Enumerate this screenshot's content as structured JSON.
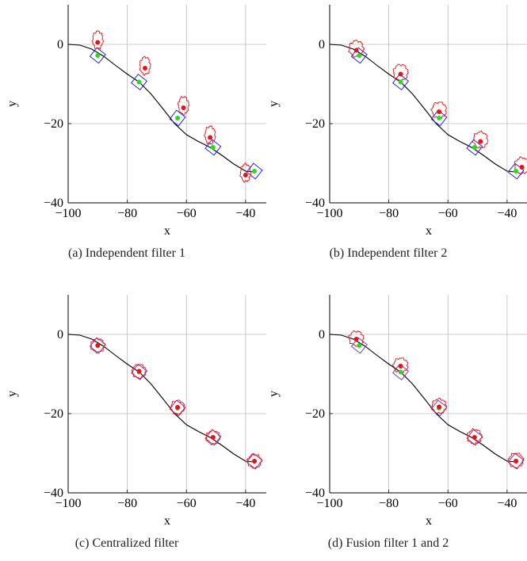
{
  "figure": {
    "panels": [
      {
        "caption": "(a) Independent filter 1"
      },
      {
        "caption": "(b) Independent filter 2"
      },
      {
        "caption": "(c) Centralized filter"
      },
      {
        "caption": "(d) Fusion filter 1 and 2"
      }
    ]
  },
  "colors": {
    "trajectory": "#000000",
    "truth_point": "#22dd22",
    "estimate_point": "#ee1111",
    "estimate_contour": "#ee1111",
    "box": "#2222ee",
    "grid": "#bbbbbb"
  },
  "chart_data": [
    {
      "type": "scatter",
      "title": "",
      "xlabel": "x",
      "ylabel": "y",
      "xlim": [
        -100,
        -33
      ],
      "ylim": [
        -40,
        10
      ],
      "xticks": [
        "−100",
        "−80",
        "−60",
        "−40"
      ],
      "yticks": [
        "0",
        "−20",
        "−40"
      ],
      "grid": true,
      "trajectory": {
        "x": [
          -100,
          -96,
          -92,
          -88,
          -84,
          -80,
          -76,
          -72,
          -68,
          -64,
          -60,
          -56,
          -52,
          -48,
          -44,
          -40,
          -37
        ],
        "y": [
          0,
          -0.2,
          -1.2,
          -3,
          -5.3,
          -7.5,
          -9.5,
          -12.5,
          -16.2,
          -20,
          -22.8,
          -24.5,
          -26,
          -28,
          -30.2,
          -32,
          -32.2
        ]
      },
      "truth": {
        "x": [
          -90,
          -76,
          -63,
          -51,
          -37
        ],
        "y": [
          -2.8,
          -9.5,
          -18.6,
          -26,
          -32
        ]
      },
      "estimates": {
        "x": [
          -90,
          -74,
          -61,
          -52,
          -40
        ],
        "y": [
          0.5,
          -6,
          -16,
          -23.5,
          -33
        ]
      }
    },
    {
      "type": "scatter",
      "title": "",
      "xlabel": "x",
      "ylabel": "y",
      "xlim": [
        -100,
        -33
      ],
      "ylim": [
        -40,
        10
      ],
      "xticks": [
        "−100",
        "−80",
        "−60",
        "−40"
      ],
      "yticks": [
        "0",
        "−20",
        "−40"
      ],
      "grid": true,
      "trajectory": {
        "x": [
          -100,
          -96,
          -92,
          -88,
          -84,
          -80,
          -76,
          -72,
          -68,
          -64,
          -60,
          -56,
          -52,
          -48,
          -44,
          -40,
          -37
        ],
        "y": [
          0,
          -0.2,
          -1.2,
          -3,
          -5.3,
          -7.5,
          -9.5,
          -12.5,
          -16.2,
          -20,
          -22.8,
          -24.5,
          -26,
          -28,
          -30.2,
          -32,
          -32.2
        ]
      },
      "truth": {
        "x": [
          -90,
          -76,
          -63,
          -51,
          -37
        ],
        "y": [
          -2.8,
          -9.5,
          -18.6,
          -26,
          -32
        ]
      },
      "estimates": {
        "x": [
          -91,
          -76,
          -63,
          -49,
          -35
        ],
        "y": [
          -1.5,
          -7.5,
          -17,
          -24.5,
          -31
        ]
      }
    },
    {
      "type": "scatter",
      "title": "",
      "xlabel": "x",
      "ylabel": "y",
      "xlim": [
        -100,
        -33
      ],
      "ylim": [
        -40,
        10
      ],
      "xticks": [
        "−100",
        "−80",
        "−60",
        "−40"
      ],
      "yticks": [
        "0",
        "−20",
        "−40"
      ],
      "grid": true,
      "trajectory": {
        "x": [
          -100,
          -96,
          -92,
          -88,
          -84,
          -80,
          -76,
          -72,
          -68,
          -64,
          -60,
          -56,
          -52,
          -48,
          -44,
          -40,
          -37
        ],
        "y": [
          0,
          -0.2,
          -1.2,
          -3,
          -5.3,
          -7.5,
          -9.5,
          -12.5,
          -16.2,
          -20,
          -22.8,
          -24.5,
          -26,
          -28,
          -30.2,
          -32,
          -32.2
        ]
      },
      "truth": {
        "x": [
          -90,
          -76,
          -63,
          -51,
          -37
        ],
        "y": [
          -2.8,
          -9.5,
          -18.6,
          -26,
          -32
        ]
      },
      "estimates": {
        "x": [
          -90,
          -76,
          -63,
          -51,
          -37
        ],
        "y": [
          -2.8,
          -9.3,
          -18.4,
          -26,
          -32
        ]
      }
    },
    {
      "type": "scatter",
      "title": "",
      "xlabel": "x",
      "ylabel": "y",
      "xlim": [
        -100,
        -33
      ],
      "ylim": [
        -40,
        10
      ],
      "xticks": [
        "−100",
        "−80",
        "−60",
        "−40"
      ],
      "yticks": [
        "0",
        "−20",
        "−40"
      ],
      "grid": true,
      "trajectory": {
        "x": [
          -100,
          -96,
          -92,
          -88,
          -84,
          -80,
          -76,
          -72,
          -68,
          -64,
          -60,
          -56,
          -52,
          -48,
          -44,
          -40,
          -37
        ],
        "y": [
          0,
          -0.2,
          -1.2,
          -3,
          -5.3,
          -7.5,
          -9.5,
          -12.5,
          -16.2,
          -20,
          -22.8,
          -24.5,
          -26,
          -28,
          -30.2,
          -32,
          -32.2
        ]
      },
      "truth": {
        "x": [
          -90,
          -76,
          -63,
          -51,
          -37
        ],
        "y": [
          -2.8,
          -9.5,
          -18.6,
          -26,
          -32
        ]
      },
      "estimates": {
        "x": [
          -91,
          -76,
          -63,
          -51,
          -37
        ],
        "y": [
          -1.2,
          -8,
          -18.3,
          -26,
          -32
        ]
      }
    }
  ]
}
